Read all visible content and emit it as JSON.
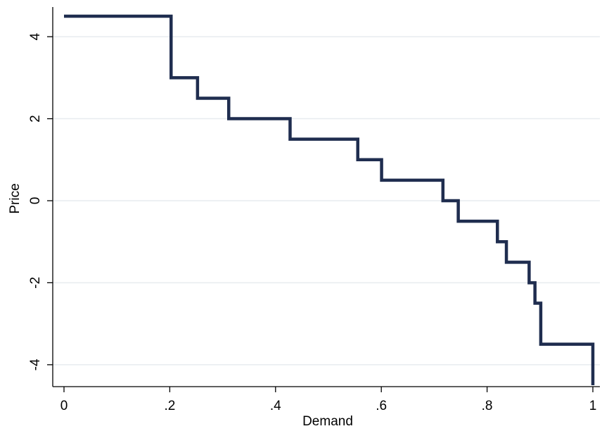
{
  "chart_data": {
    "type": "line",
    "step": true,
    "title": "",
    "xlabel": "Demand",
    "ylabel": "Price",
    "xlim": [
      0,
      1
    ],
    "ylim": [
      -4.5,
      4.5
    ],
    "grid": true,
    "series_color": "#1f2d4f",
    "grid_color": "#e7ecef",
    "x_ticks": [
      {
        "value": 0,
        "label": "0"
      },
      {
        "value": 0.2,
        "label": ".2"
      },
      {
        "value": 0.4,
        "label": ".4"
      },
      {
        "value": 0.6,
        "label": ".6"
      },
      {
        "value": 0.8,
        "label": ".8"
      },
      {
        "value": 1,
        "label": "1"
      }
    ],
    "y_ticks": [
      {
        "value": 4,
        "label": "4"
      },
      {
        "value": 2,
        "label": "2"
      },
      {
        "value": 0,
        "label": "0"
      },
      {
        "value": -2,
        "label": "-2"
      },
      {
        "value": -4,
        "label": "-4"
      }
    ],
    "series": [
      {
        "x": [
          0,
          0.2025,
          0.2025,
          0.2525,
          0.2525,
          0.3115,
          0.3115,
          0.4275,
          0.4275,
          0.5555,
          0.5555,
          0.6005,
          0.6005,
          0.7165,
          0.7165,
          0.7455,
          0.7455,
          0.8195,
          0.8195,
          0.8365,
          0.8365,
          0.8795,
          0.8795,
          0.8905,
          0.8905,
          0.9015,
          0.9015,
          1.0,
          1.0
        ],
        "y": [
          4.5,
          4.5,
          3.0,
          3.0,
          2.5,
          2.5,
          2.0,
          2.0,
          1.5,
          1.5,
          1.0,
          1.0,
          0.5,
          0.5,
          0.0,
          0.0,
          -0.5,
          -0.5,
          -1.0,
          -1.0,
          -1.5,
          -1.5,
          -2.0,
          -2.0,
          -2.5,
          -2.5,
          -3.5,
          -3.5,
          -4.5
        ]
      }
    ]
  }
}
